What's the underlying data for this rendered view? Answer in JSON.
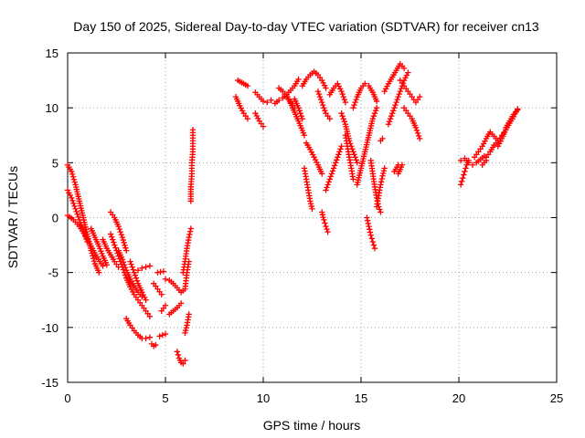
{
  "chart_data": {
    "type": "scatter",
    "title": "Day 150 of 2025, Sidereal Day-to-day VTEC variation (SDTVAR) for receiver cn13",
    "xlabel": "GPS time / hours",
    "ylabel": "SDTVAR / TECUs",
    "xlim": [
      0,
      25
    ],
    "ylim": [
      -15,
      15
    ],
    "xticks": [
      "0",
      "5",
      "10",
      "15",
      "20",
      "25"
    ],
    "yticks": [
      "15",
      "10",
      "5",
      "0",
      "-5",
      "-10",
      "-15"
    ],
    "xtick_values": [
      0,
      5,
      10,
      15,
      20,
      25
    ],
    "ytick_values": [
      15,
      10,
      5,
      0,
      -5,
      -10,
      -15
    ],
    "grid": true,
    "marker": "+",
    "color": "#ff0000",
    "series": [
      {
        "name": "SDTVAR",
        "tracks": [
          {
            "x": [
              0.0,
              0.2,
              0.4,
              0.6,
              0.8,
              1.0,
              1.2,
              1.4,
              1.6
            ],
            "y": [
              4.8,
              4.2,
              3.0,
              1.5,
              0.0,
              -1.5,
              -3.0,
              -4.2,
              -5.0
            ]
          },
          {
            "x": [
              0.0,
              0.2,
              0.4,
              0.6,
              0.8,
              1.0
            ],
            "y": [
              2.5,
              1.8,
              0.8,
              -0.2,
              -1.2,
              -2.2
            ]
          },
          {
            "x": [
              0.0,
              0.3,
              0.6,
              0.9,
              1.2,
              1.5,
              1.8
            ],
            "y": [
              0.2,
              -0.2,
              -0.8,
              -1.6,
              -2.6,
              -3.6,
              -4.4
            ]
          },
          {
            "x": [
              1.2,
              1.4,
              1.6,
              1.8,
              2.0
            ],
            "y": [
              -1.0,
              -1.8,
              -2.6,
              -3.5,
              -4.3
            ]
          },
          {
            "x": [
              1.8,
              2.0,
              2.2,
              2.4,
              2.6
            ],
            "y": [
              -2.0,
              -2.8,
              -3.4,
              -4.0,
              -4.5
            ]
          },
          {
            "x": [
              2.2,
              2.4,
              2.6,
              2.8,
              3.0
            ],
            "y": [
              0.5,
              0.0,
              -0.8,
              -1.8,
              -3.0
            ]
          },
          {
            "x": [
              2.2,
              2.4,
              2.6,
              2.8,
              3.0,
              3.2,
              3.4,
              3.6,
              3.8,
              4.0,
              4.2
            ],
            "y": [
              -1.5,
              -2.5,
              -3.5,
              -4.5,
              -5.5,
              -6.3,
              -7.0,
              -7.5,
              -8.0,
              -8.5,
              -9.0
            ]
          },
          {
            "x": [
              2.6,
              2.8,
              3.0,
              3.2,
              3.4,
              3.6,
              3.8
            ],
            "y": [
              -3.0,
              -3.8,
              -4.8,
              -5.6,
              -6.2,
              -6.8,
              -7.2
            ]
          },
          {
            "x": [
              3.2,
              3.4,
              3.6,
              3.8,
              4.0
            ],
            "y": [
              -4.0,
              -5.0,
              -6.0,
              -6.8,
              -7.5
            ]
          },
          {
            "x": [
              3.6,
              3.8,
              4.0,
              4.2
            ],
            "y": [
              -4.8,
              -4.6,
              -4.5,
              -4.4
            ]
          },
          {
            "x": [
              3.0,
              3.2,
              3.4,
              3.6,
              3.8,
              4.0,
              4.2
            ],
            "y": [
              -9.2,
              -9.8,
              -10.3,
              -10.7,
              -11.0,
              -11.0,
              -10.9
            ]
          },
          {
            "x": [
              4.3,
              4.4,
              4.5
            ],
            "y": [
              -11.5,
              -11.7,
              -11.6
            ]
          },
          {
            "x": [
              4.4,
              4.6,
              4.8
            ],
            "y": [
              -6.0,
              -6.5,
              -7.0
            ]
          },
          {
            "x": [
              4.6,
              4.9
            ],
            "y": [
              -5.0,
              -4.9
            ]
          },
          {
            "x": [
              4.7,
              5.0
            ],
            "y": [
              -10.8,
              -10.6
            ]
          },
          {
            "x": [
              4.8,
              5.0
            ],
            "y": [
              -8.5,
              -8.0
            ]
          },
          {
            "x": [
              5.0,
              5.2,
              5.4,
              5.6,
              5.8,
              6.0,
              6.1,
              6.2
            ],
            "y": [
              -5.6,
              -5.7,
              -6.0,
              -6.4,
              -6.8,
              -6.5,
              -5.0,
              -4.0
            ]
          },
          {
            "x": [
              5.2,
              5.4,
              5.6,
              5.8
            ],
            "y": [
              -8.8,
              -8.5,
              -8.2,
              -7.8
            ]
          },
          {
            "x": [
              5.6,
              5.7,
              5.8,
              5.9,
              6.0
            ],
            "y": [
              -12.2,
              -12.8,
              -13.2,
              -13.3,
              -13.0
            ]
          },
          {
            "x": [
              6.0,
              6.1,
              6.2
            ],
            "y": [
              -10.5,
              -9.8,
              -8.8
            ]
          },
          {
            "x": [
              5.9,
              6.0,
              6.1,
              6.2,
              6.3
            ],
            "y": [
              -5.0,
              -4.0,
              -2.8,
              -1.8,
              -1.0
            ]
          },
          {
            "x": [
              6.3,
              6.3,
              6.35,
              6.35,
              6.4,
              6.4,
              6.4
            ],
            "y": [
              1.5,
              2.8,
              4.0,
              5.0,
              6.0,
              7.0,
              8.0
            ]
          },
          {
            "x": [
              8.7,
              8.8,
              8.9,
              9.0,
              9.1,
              9.2
            ],
            "y": [
              12.5,
              12.4,
              12.3,
              12.2,
              12.1,
              12.0
            ]
          },
          {
            "x": [
              8.6,
              8.8,
              9.0,
              9.2
            ],
            "y": [
              11.0,
              10.2,
              9.5,
              9.0
            ]
          },
          {
            "x": [
              9.6,
              9.8,
              10.0,
              10.2,
              10.4
            ],
            "y": [
              11.4,
              11.0,
              10.6,
              10.5,
              10.7
            ]
          },
          {
            "x": [
              9.6,
              9.8,
              10.0
            ],
            "y": [
              9.5,
              8.8,
              8.3
            ]
          },
          {
            "x": [
              10.6,
              10.8,
              11.0,
              11.2,
              11.4,
              11.6,
              11.8
            ],
            "y": [
              10.4,
              10.7,
              10.9,
              11.2,
              11.6,
              12.0,
              12.6
            ]
          },
          {
            "x": [
              10.8,
              11.0,
              11.2,
              11.4,
              11.6
            ],
            "y": [
              11.8,
              11.5,
              11.0,
              10.5,
              10.0
            ]
          },
          {
            "x": [
              11.2,
              11.5,
              11.8,
              12.1
            ],
            "y": [
              11.2,
              10.0,
              8.8,
              7.5
            ]
          },
          {
            "x": [
              11.6,
              11.8,
              12.0
            ],
            "y": [
              10.8,
              10.0,
              9.0
            ]
          },
          {
            "x": [
              12.0,
              12.2,
              12.4,
              12.6,
              12.8,
              13.0,
              13.2
            ],
            "y": [
              12.0,
              12.6,
              13.0,
              13.3,
              13.0,
              12.5,
              11.8
            ]
          },
          {
            "x": [
              12.2,
              12.4,
              12.6,
              12.8,
              13.0
            ],
            "y": [
              6.8,
              6.2,
              5.5,
              4.8,
              4.0
            ]
          },
          {
            "x": [
              12.1,
              12.2,
              12.3,
              12.4,
              12.5
            ],
            "y": [
              4.5,
              3.5,
              2.5,
              1.5,
              0.8
            ]
          },
          {
            "x": [
              12.8,
              13.0,
              13.2,
              13.4
            ],
            "y": [
              11.5,
              10.5,
              9.5,
              9.0
            ]
          },
          {
            "x": [
              13.0,
              13.1,
              13.2,
              13.3
            ],
            "y": [
              0.5,
              -0.2,
              -0.8,
              -1.3
            ]
          },
          {
            "x": [
              13.4,
              13.6,
              13.8,
              14.0,
              14.2
            ],
            "y": [
              11.2,
              11.8,
              12.2,
              11.5,
              10.5
            ]
          },
          {
            "x": [
              13.2,
              13.4,
              13.6,
              13.8,
              14.0
            ],
            "y": [
              2.5,
              3.5,
              4.5,
              5.5,
              6.5
            ]
          },
          {
            "x": [
              14.0,
              14.2,
              14.4,
              14.6,
              14.8
            ],
            "y": [
              9.5,
              8.5,
              7.0,
              6.0,
              5.0
            ]
          },
          {
            "x": [
              14.2,
              14.3,
              14.4,
              14.5,
              14.6
            ],
            "y": [
              7.5,
              6.5,
              5.5,
              4.5,
              3.5
            ]
          },
          {
            "x": [
              14.6,
              14.8,
              15.0,
              15.2,
              15.4,
              15.6,
              15.8
            ],
            "y": [
              10.0,
              11.0,
              11.8,
              12.2,
              12.0,
              11.4,
              10.6
            ]
          },
          {
            "x": [
              14.8,
              15.0,
              15.2,
              15.4,
              15.6,
              15.8
            ],
            "y": [
              3.0,
              4.5,
              6.0,
              7.5,
              9.0,
              10.0
            ]
          },
          {
            "x": [
              15.3,
              15.4,
              15.5,
              15.6,
              15.7
            ],
            "y": [
              0.0,
              -0.8,
              -1.6,
              -2.2,
              -2.8
            ]
          },
          {
            "x": [
              15.5,
              15.6,
              15.7,
              15.8,
              15.9,
              16.0
            ],
            "y": [
              5.2,
              4.0,
              2.8,
              1.8,
              1.0,
              0.5
            ]
          },
          {
            "x": [
              15.8,
              15.9,
              16.0,
              16.1,
              16.2
            ],
            "y": [
              1.0,
              2.0,
              3.0,
              3.8,
              4.5
            ]
          },
          {
            "x": [
              16.2,
              16.4,
              16.6,
              16.8,
              17.0,
              17.2
            ],
            "y": [
              11.5,
              12.2,
              12.8,
              13.4,
              14.0,
              13.6
            ]
          },
          {
            "x": [
              16.4,
              16.6,
              16.8,
              17.0,
              17.2,
              17.4
            ],
            "y": [
              8.5,
              9.5,
              10.5,
              11.5,
              12.5,
              13.2
            ]
          },
          {
            "x": [
              16.7,
              16.9
            ],
            "y": [
              4.2,
              4.8
            ]
          },
          {
            "x": [
              16.9,
              17.0,
              17.1
            ],
            "y": [
              4.0,
              4.4,
              4.8
            ]
          },
          {
            "x": [
              17.0,
              17.2,
              17.4,
              17.6,
              17.8,
              18.0
            ],
            "y": [
              12.5,
              12.0,
              11.5,
              11.0,
              10.5,
              11.0
            ]
          },
          {
            "x": [
              17.2,
              17.4,
              17.6,
              17.8,
              18.0
            ],
            "y": [
              10.0,
              9.5,
              9.0,
              8.2,
              7.2
            ]
          },
          {
            "x": [
              16.0,
              16.1
            ],
            "y": [
              7.0,
              7.2
            ]
          },
          {
            "x": [
              20.1,
              20.3,
              20.5,
              20.7,
              20.9,
              21.1,
              21.3
            ],
            "y": [
              5.2,
              5.4,
              5.0,
              4.8,
              5.0,
              5.3,
              5.6
            ]
          },
          {
            "x": [
              20.1,
              20.2,
              20.3,
              20.4,
              20.5
            ],
            "y": [
              3.0,
              3.6,
              4.2,
              4.8,
              5.2
            ]
          },
          {
            "x": [
              20.8,
              21.0,
              21.2,
              21.4,
              21.6
            ],
            "y": [
              5.5,
              6.0,
              6.5,
              7.2,
              7.8
            ]
          },
          {
            "x": [
              21.4,
              21.6,
              21.8,
              22.0,
              22.2,
              22.4
            ],
            "y": [
              5.5,
              6.0,
              6.6,
              7.0,
              7.5,
              8.0
            ]
          },
          {
            "x": [
              21.6,
              21.8,
              22.0
            ],
            "y": [
              7.8,
              7.4,
              7.0
            ]
          },
          {
            "x": [
              22.0,
              22.2,
              22.4,
              22.6,
              22.8,
              23.0
            ],
            "y": [
              6.5,
              7.2,
              8.0,
              8.6,
              9.2,
              9.9
            ]
          },
          {
            "x": [
              22.4,
              22.6,
              22.8,
              23.0
            ],
            "y": [
              8.2,
              8.8,
              9.4,
              9.8
            ]
          },
          {
            "x": [
              21.2,
              21.4
            ],
            "y": [
              4.8,
              5.2
            ]
          }
        ]
      }
    ]
  }
}
